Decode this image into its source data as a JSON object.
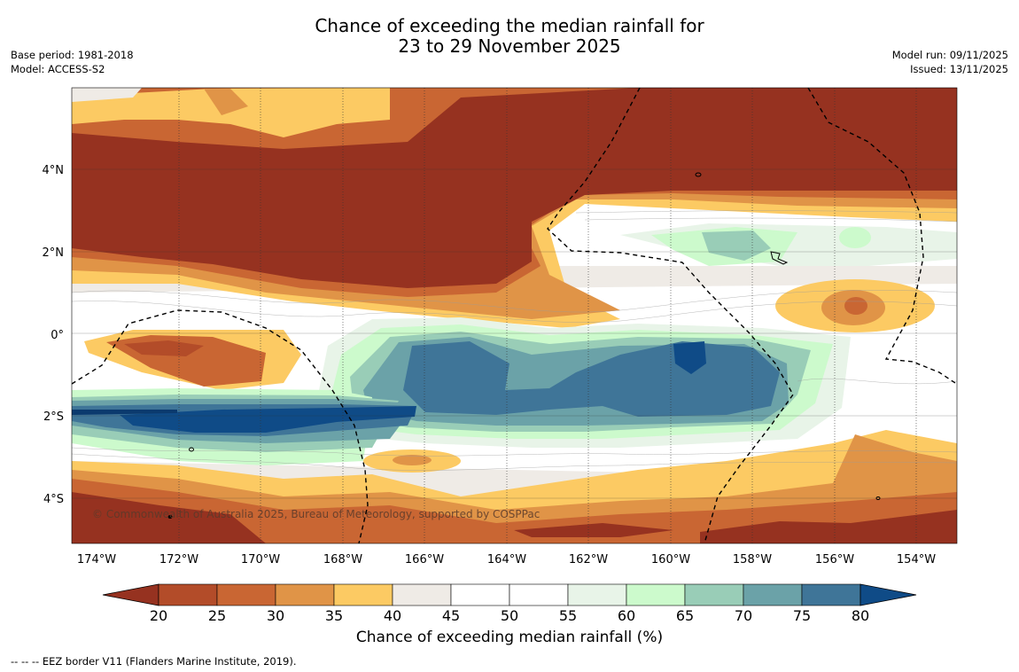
{
  "title": {
    "line1": "Chance of exceeding the median rainfall for",
    "line2": "23 to 29 November 2025"
  },
  "meta_left": {
    "base_period": "Base period: 1981-2018",
    "model": "Model: ACCESS-S2"
  },
  "meta_right": {
    "model_run": "Model run: 09/11/2025",
    "issued": "Issued: 13/11/2025"
  },
  "map": {
    "lon_range": [
      -174.6,
      -152.9
    ],
    "lat_range": [
      -5.2,
      5.9
    ],
    "lat_ticks": [
      "4°N",
      "2°N",
      "0°",
      "2°S",
      "4°S"
    ],
    "lon_ticks": [
      "174°W",
      "172°W",
      "170°W",
      "168°W",
      "166°W",
      "164°W",
      "162°W",
      "160°W",
      "158°W",
      "156°W",
      "154°W"
    ],
    "copyright": "© Commonwealth of Australia 2025, Bureau of Meteorology, supported by COSPPac",
    "border_style": "dashed"
  },
  "colorbar": {
    "ticks": [
      "20",
      "25",
      "30",
      "35",
      "40",
      "45",
      "50",
      "55",
      "60",
      "65",
      "70",
      "75",
      "80"
    ],
    "colors": [
      "#963220",
      "#b34c29",
      "#c96633",
      "#e09447",
      "#fcca63",
      "#efebe6",
      "#ffffff",
      "#ffffff",
      "#e8f4e8",
      "#ccfacc",
      "#99cdb7",
      "#6ba2a8",
      "#3f7598",
      "#0f4b87"
    ],
    "label": "Chance of exceeding median rainfall (%)"
  },
  "footer": "--  --  -- EEZ border V11 (Flanders Marine Institute, 2019)."
}
